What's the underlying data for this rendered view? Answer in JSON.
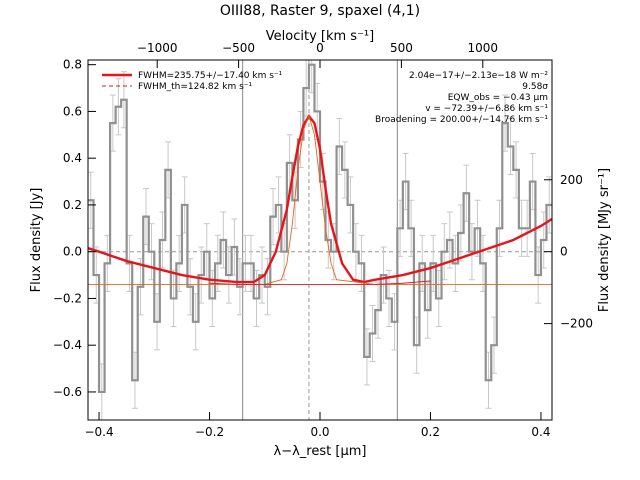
{
  "chart_data": {
    "type": "line",
    "title": "OIII88, Raster 9, spaxel (4,1)",
    "xlabel": "λ−λ_rest [μm]",
    "ylabel": "Flux density [Jy]",
    "top_axis_label": "Velocity [km s⁻¹]",
    "right_axis_label": "Flux density [MJy sr⁻¹]",
    "xlim": [
      -0.42,
      0.42
    ],
    "ylim": [
      -0.72,
      0.82
    ],
    "x_ticks": [
      "−0.4",
      "−0.2",
      "0.0",
      "0.2",
      "0.4"
    ],
    "y_ticks": [
      "−0.6",
      "−0.4",
      "−0.2",
      "0.0",
      "0.2",
      "0.4",
      "0.6",
      "0.8"
    ],
    "top_ticks": [
      "−1000",
      "−500",
      "0",
      "500",
      "1000"
    ],
    "right_ticks": [
      "−200",
      "0",
      "200"
    ],
    "vertical_lines": [
      -0.14,
      0.14
    ],
    "center_line": -0.02,
    "legend": [
      {
        "label": "FWHM=235.75+/−17.40 km s⁻¹",
        "color": "#e8141c",
        "style": "solid"
      },
      {
        "label": "FWHM_th=124.82 km s⁻¹",
        "color": "#e8141c",
        "style": "dashed"
      }
    ],
    "annotations": [
      "2.04e−17+/−2.13e−18 W m⁻²",
      "9.58σ",
      "EQW_obs = −0.43 μm",
      "v = −72.39+/−6.86 km s⁻¹",
      "Broadening = 200.00+/−14.76 km s⁻¹"
    ],
    "series": [
      {
        "name": "",
        "color": "#909090",
        "style": "steps",
        "x": [
          -0.415,
          -0.405,
          -0.395,
          -0.385,
          -0.375,
          -0.365,
          -0.355,
          -0.345,
          -0.335,
          -0.325,
          -0.315,
          -0.305,
          -0.295,
          -0.285,
          -0.275,
          -0.265,
          -0.255,
          -0.245,
          -0.235,
          -0.225,
          -0.215,
          -0.205,
          -0.195,
          -0.185,
          -0.175,
          -0.165,
          -0.155,
          -0.145,
          -0.135,
          -0.125,
          -0.115,
          -0.105,
          -0.095,
          -0.085,
          -0.075,
          -0.065,
          -0.055,
          -0.045,
          -0.035,
          -0.025,
          -0.015,
          -0.005,
          0.005,
          0.015,
          0.025,
          0.035,
          0.045,
          0.055,
          0.065,
          0.075,
          0.085,
          0.095,
          0.105,
          0.115,
          0.125,
          0.135,
          0.145,
          0.155,
          0.165,
          0.175,
          0.185,
          0.195,
          0.205,
          0.215,
          0.225,
          0.235,
          0.245,
          0.255,
          0.265,
          0.275,
          0.285,
          0.295,
          0.305,
          0.315,
          0.325,
          0.335,
          0.345,
          0.355,
          0.365,
          0.375,
          0.385,
          0.395,
          0.405,
          0.415
        ],
        "values": [
          0.22,
          -0.1,
          -0.6,
          -0.05,
          0.55,
          0.62,
          0.65,
          -0.05,
          -0.55,
          -0.15,
          0.15,
          0.0,
          -0.3,
          0.05,
          0.35,
          -0.2,
          -0.05,
          0.2,
          -0.15,
          -0.3,
          -0.1,
          0.0,
          -0.2,
          -0.05,
          0.05,
          -0.1,
          0.02,
          -0.15,
          -0.05,
          -0.05,
          -0.2,
          -0.1,
          -0.15,
          0.15,
          0.2,
          0.0,
          0.38,
          0.22,
          0.48,
          0.7,
          0.8,
          0.6,
          0.3,
          0.05,
          0.0,
          0.45,
          0.35,
          0.2,
          0.0,
          -0.05,
          -0.45,
          -0.35,
          -0.25,
          -0.1,
          -0.2,
          -0.3,
          0.1,
          0.3,
          0.1,
          -0.4,
          -0.05,
          -0.25,
          -0.05,
          -0.2,
          0.0,
          0.05,
          -0.05,
          0.08,
          0.25,
          0.0,
          0.1,
          -0.05,
          -0.55,
          -0.4,
          0.1,
          0.55,
          0.45,
          0.35,
          0.1,
          0.1,
          0.3,
          -0.1,
          0.05,
          0.2
        ],
        "errors": [
          0.12,
          0.12,
          0.12,
          0.12,
          0.12,
          0.12,
          0.12,
          0.12,
          0.12,
          0.12,
          0.12,
          0.12,
          0.12,
          0.12,
          0.12,
          0.12,
          0.12,
          0.12,
          0.12,
          0.12,
          0.12,
          0.12,
          0.12,
          0.12,
          0.12,
          0.12,
          0.12,
          0.12,
          0.12,
          0.12,
          0.12,
          0.12,
          0.12,
          0.12,
          0.12,
          0.12,
          0.12,
          0.12,
          0.12,
          0.12,
          0.12,
          0.12,
          0.12,
          0.12,
          0.12,
          0.12,
          0.12,
          0.12,
          0.12,
          0.12,
          0.12,
          0.12,
          0.12,
          0.12,
          0.12,
          0.12,
          0.12,
          0.12,
          0.12,
          0.12,
          0.12,
          0.12,
          0.12,
          0.12,
          0.12,
          0.12,
          0.12,
          0.12,
          0.12,
          0.12,
          0.12,
          0.12,
          0.12,
          0.12,
          0.12,
          0.12,
          0.12,
          0.12,
          0.12,
          0.12,
          0.12,
          0.12,
          0.12,
          0.12
        ]
      },
      {
        "name": "FWHM=235.75+/−17.40 km s⁻¹",
        "color": "#e8141c",
        "style": "fit",
        "x": [
          -0.42,
          -0.4,
          -0.35,
          -0.3,
          -0.25,
          -0.2,
          -0.15,
          -0.12,
          -0.1,
          -0.08,
          -0.06,
          -0.05,
          -0.04,
          -0.03,
          -0.02,
          -0.01,
          0.0,
          0.01,
          0.02,
          0.04,
          0.06,
          0.08,
          0.1,
          0.15,
          0.2,
          0.25,
          0.3,
          0.35,
          0.4,
          0.42
        ],
        "values": [
          0.015,
          0.0,
          -0.04,
          -0.07,
          -0.1,
          -0.12,
          -0.13,
          -0.13,
          -0.1,
          0.0,
          0.18,
          0.32,
          0.45,
          0.54,
          0.58,
          0.55,
          0.44,
          0.27,
          0.12,
          -0.05,
          -0.12,
          -0.13,
          -0.12,
          -0.1,
          -0.07,
          -0.03,
          0.01,
          0.05,
          0.11,
          0.14
        ]
      },
      {
        "name": "FWHM_th=124.82 km s⁻¹",
        "color": "#e8641c",
        "style": "thin",
        "x": [
          -0.42,
          -0.3,
          -0.2,
          -0.1,
          -0.07,
          -0.06,
          -0.05,
          -0.04,
          -0.03,
          -0.02,
          -0.01,
          0.0,
          0.01,
          0.02,
          0.03,
          0.1,
          0.2,
          0.3,
          0.42
        ],
        "values": [
          -0.14,
          -0.14,
          -0.14,
          -0.14,
          -0.12,
          -0.05,
          0.12,
          0.35,
          0.52,
          0.58,
          0.5,
          0.3,
          0.1,
          -0.05,
          -0.12,
          -0.14,
          -0.14,
          -0.14,
          -0.14
        ]
      },
      {
        "name": "",
        "color": "#e8141c",
        "style": "thin",
        "x": [
          -0.2,
          -0.15,
          -0.1,
          -0.05,
          0.0,
          0.05,
          0.1,
          0.15,
          0.2
        ],
        "values": [
          -0.135,
          -0.14,
          -0.14,
          -0.14,
          -0.14,
          -0.14,
          -0.14,
          -0.135,
          -0.125
        ]
      }
    ]
  }
}
